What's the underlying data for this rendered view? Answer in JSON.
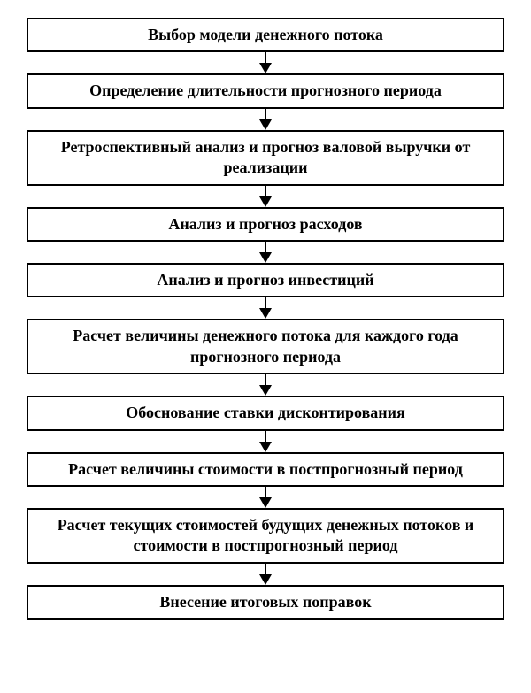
{
  "flowchart": {
    "type": "flowchart",
    "direction": "vertical",
    "node_border_color": "#000000",
    "node_border_width": 2,
    "node_background": "#ffffff",
    "text_color": "#000000",
    "font_family": "Times New Roman",
    "font_weight": "bold",
    "font_size_pt": 14,
    "arrow_color": "#000000",
    "background_color": "#ffffff",
    "nodes": [
      {
        "id": 0,
        "label": "Выбор модели денежного потока"
      },
      {
        "id": 1,
        "label": "Определение длительности прогнозного периода"
      },
      {
        "id": 2,
        "label": "Ретроспективный анализ и прогноз валовой выручки от реализации"
      },
      {
        "id": 3,
        "label": "Анализ и прогноз расходов"
      },
      {
        "id": 4,
        "label": "Анализ и прогноз инвестиций"
      },
      {
        "id": 5,
        "label": "Расчет величины денежного потока для каждого года прогнозного периода"
      },
      {
        "id": 6,
        "label": "Обоснование ставки дисконтирования"
      },
      {
        "id": 7,
        "label": "Расчет величины стоимости в постпрогнозный период"
      },
      {
        "id": 8,
        "label": "Расчет текущих стоимостей будущих денежных потоков и стоимости в постпрогнозный период"
      },
      {
        "id": 9,
        "label": "Внесение итоговых поправок"
      }
    ],
    "edges": [
      {
        "from": 0,
        "to": 1
      },
      {
        "from": 1,
        "to": 2
      },
      {
        "from": 2,
        "to": 3
      },
      {
        "from": 3,
        "to": 4
      },
      {
        "from": 4,
        "to": 5
      },
      {
        "from": 5,
        "to": 6
      },
      {
        "from": 6,
        "to": 7
      },
      {
        "from": 7,
        "to": 8
      },
      {
        "from": 8,
        "to": 9
      }
    ]
  }
}
